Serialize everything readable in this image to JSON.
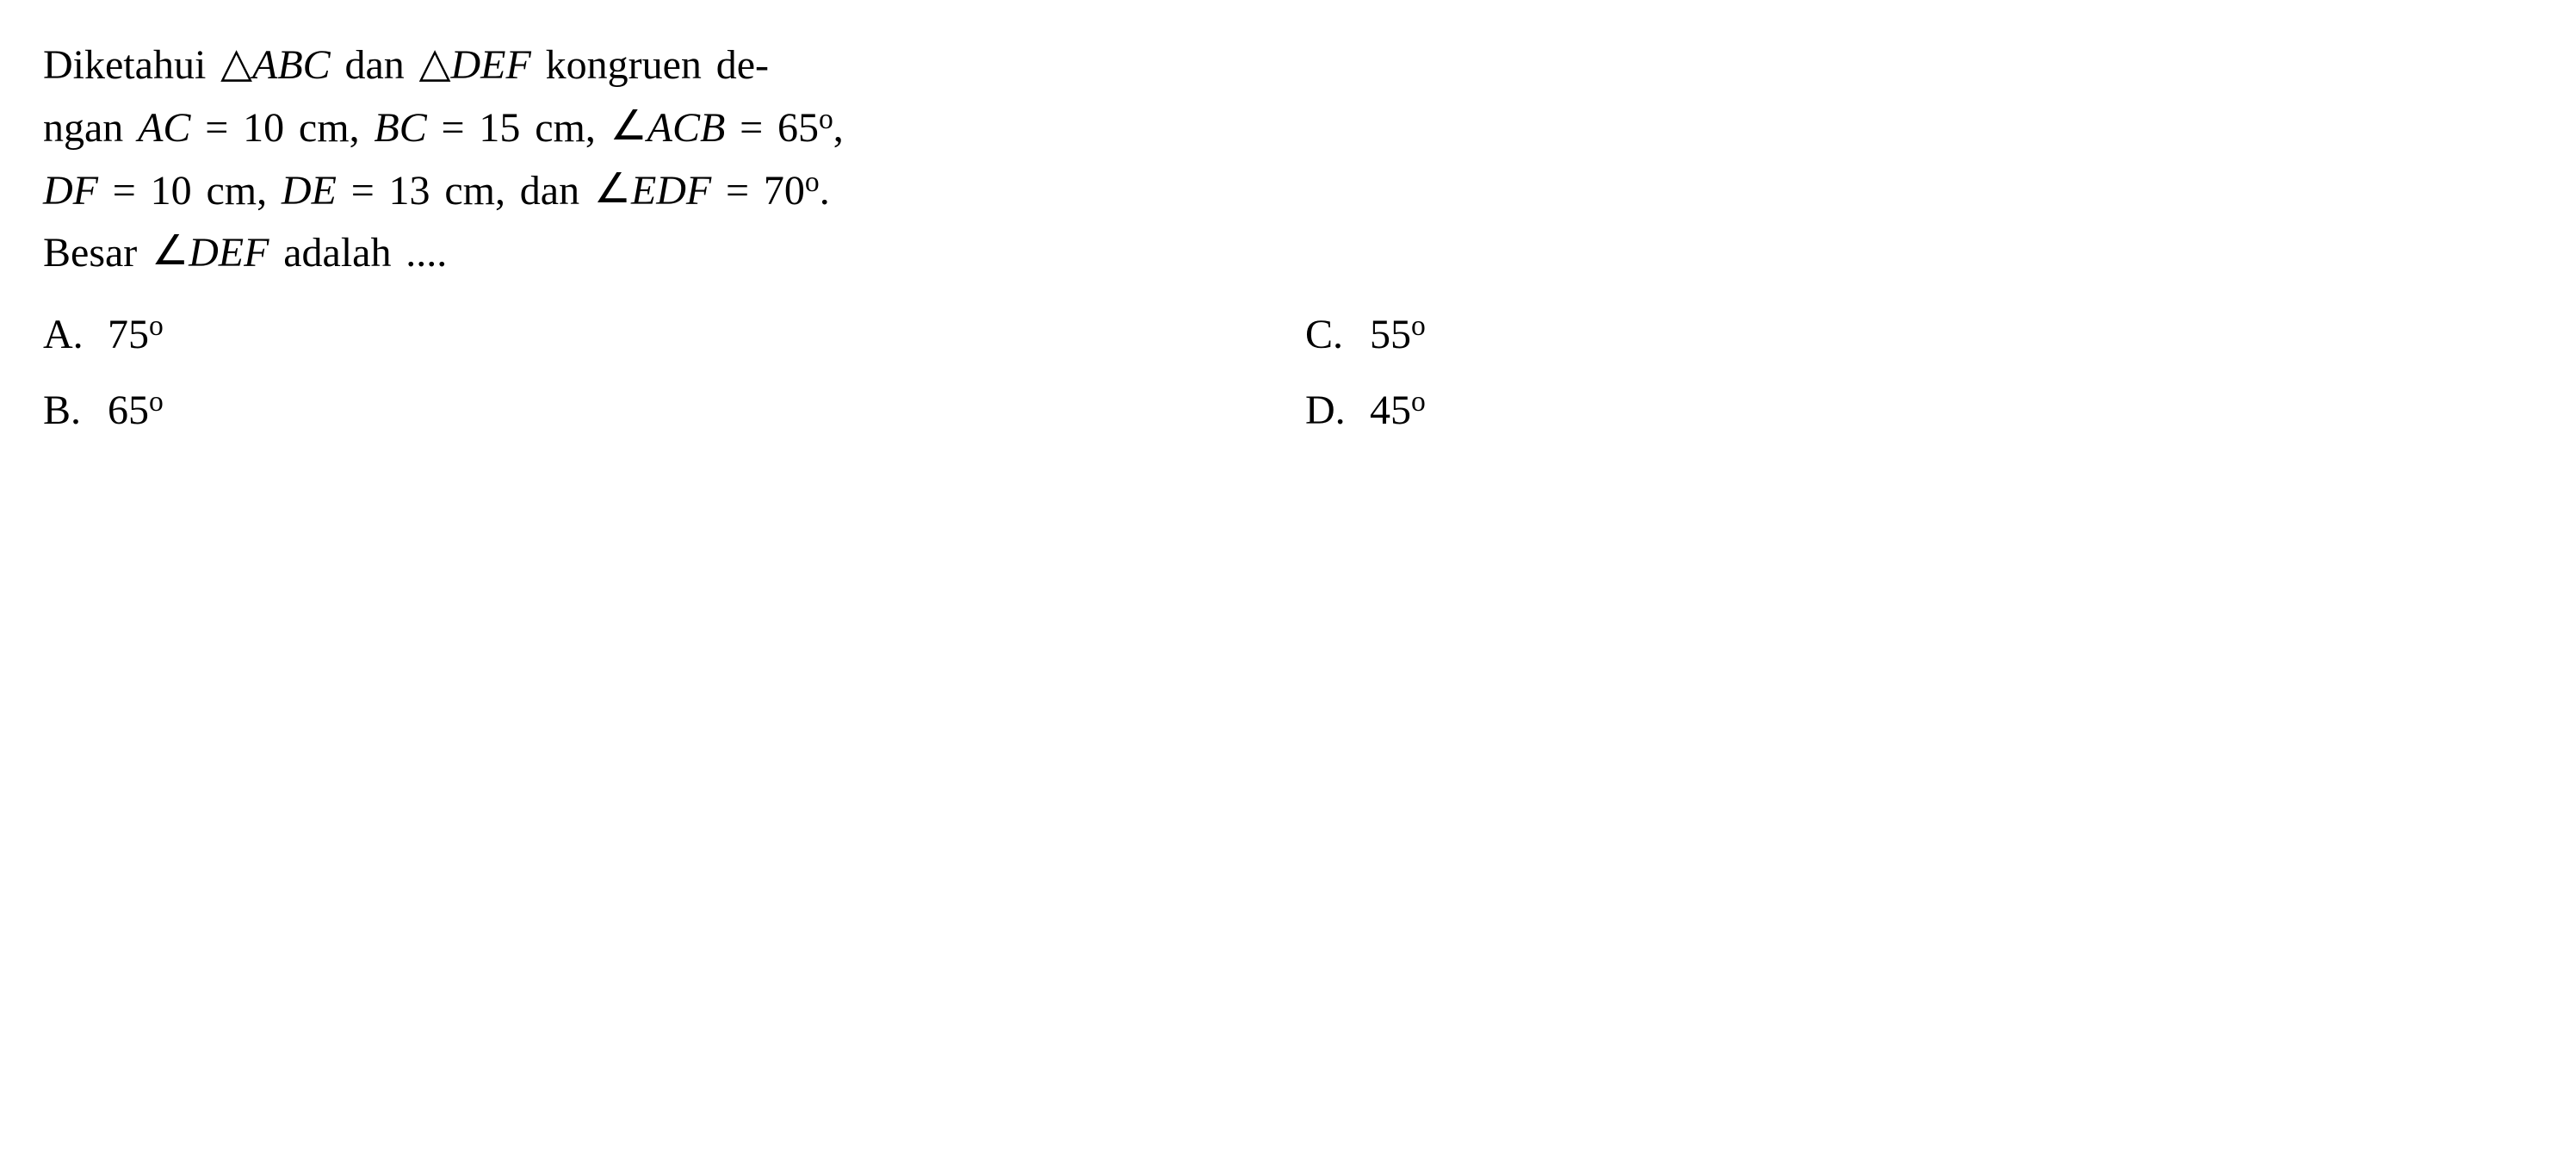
{
  "question": {
    "line1_parts": {
      "p1": "Diketahui ",
      "tri1": "△",
      "abc": "ABC",
      "p2": " dan ",
      "tri2": "△",
      "def": "DEF",
      "p3": " kongruen de-"
    },
    "line2_parts": {
      "p1": "ngan ",
      "ac": "AC",
      "eq1": " = 10 cm, ",
      "bc": "BC",
      "eq2": " = 15 cm, ",
      "ang1": "∠",
      "acb": "ACB",
      "eq3": " = 65",
      "deg1": "o",
      "comma": ","
    },
    "line3_parts": {
      "df": "DF",
      "eq1": " = 10 cm, ",
      "de": "DE",
      "eq2": " = 13 cm, dan ",
      "ang1": "∠",
      "edf": "EDF",
      "eq3": " = 70",
      "deg1": "o",
      "period": "."
    },
    "line4_parts": {
      "p1": "Besar ",
      "ang1": "∠",
      "def": "DEF",
      "p2": " adalah ...."
    }
  },
  "options": {
    "a": {
      "label": "A.",
      "value": "75",
      "degree": "o"
    },
    "b": {
      "label": "B.",
      "value": "65",
      "degree": "o"
    },
    "c": {
      "label": "C.",
      "value": "55",
      "degree": "o"
    },
    "d": {
      "label": "D.",
      "value": "45",
      "degree": "o"
    }
  },
  "styling": {
    "background_color": "#ffffff",
    "text_color": "#000000",
    "font_family": "Georgia, Times New Roman, serif",
    "body_fontsize": 48,
    "line_height": 1.5,
    "degree_fontsize_ratio": 0.7,
    "layout": {
      "options_columns": 2,
      "options_rows": 2,
      "padding_vertical": 40,
      "padding_horizontal": 50
    }
  }
}
